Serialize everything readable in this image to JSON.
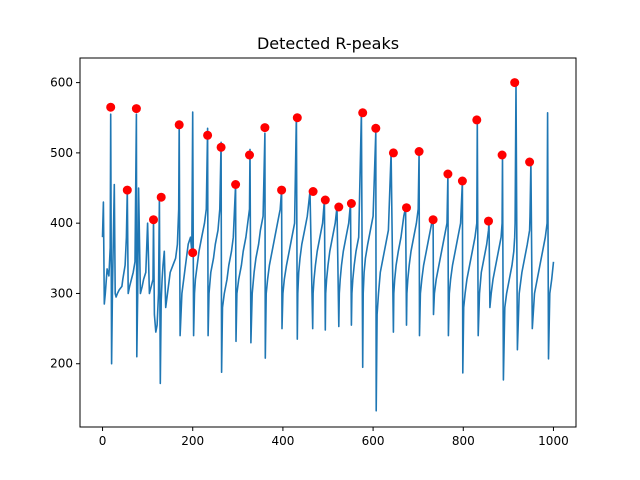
{
  "chart_data": {
    "type": "line",
    "title": "Detected R-peaks",
    "xlabel": "",
    "ylabel": "",
    "xlim": [
      -50,
      1050
    ],
    "ylim": [
      110,
      635
    ],
    "xticks": [
      0,
      200,
      400,
      600,
      800,
      1000
    ],
    "yticks": [
      200,
      300,
      400,
      500,
      600
    ],
    "grid": false,
    "series": [
      {
        "kind": "line",
        "color": "#1f77b4",
        "x": [
          0,
          2,
          4,
          6,
          10,
          14,
          17,
          18,
          20,
          22,
          26,
          28,
          30,
          33,
          37,
          43,
          45,
          50,
          53,
          55,
          57,
          60,
          64,
          68,
          72,
          75,
          76,
          78,
          80,
          84,
          86,
          88,
          91,
          96,
          100,
          104,
          108,
          112,
          113,
          115,
          118,
          121,
          124,
          126,
          128,
          130,
          132,
          134,
          137,
          140,
          146,
          150,
          156,
          162,
          166,
          169,
          170,
          172,
          176,
          182,
          186,
          190,
          195,
          198,
          200,
          202,
          204,
          206,
          210,
          214,
          220,
          226,
          230,
          233,
          234,
          236,
          240,
          246,
          250,
          256,
          260,
          263,
          264,
          266,
          270,
          276,
          280,
          286,
          290,
          295,
          296,
          298,
          302,
          308,
          312,
          318,
          322,
          326,
          327,
          329,
          332,
          336,
          340,
          346,
          350,
          356,
          360,
          361,
          363,
          366,
          370,
          376,
          382,
          388,
          394,
          397,
          398,
          400,
          403,
          408,
          414,
          420,
          426,
          430,
          432,
          433,
          435,
          438,
          442,
          448,
          454,
          460,
          466,
          467,
          469,
          472,
          476,
          482,
          488,
          492,
          494,
          495,
          497,
          500,
          504,
          510,
          516,
          520,
          524,
          525,
          527,
          530,
          534,
          540,
          546,
          550,
          552,
          553,
          555,
          558,
          562,
          568,
          574,
          577,
          578,
          580,
          583,
          588,
          594,
          600,
          606,
          607,
          609,
          612,
          616,
          622,
          628,
          634,
          640,
          645,
          646,
          648,
          651,
          656,
          662,
          668,
          672,
          674,
          675,
          677,
          680,
          684,
          690,
          696,
          700,
          702,
          703,
          705,
          708,
          712,
          718,
          724,
          730,
          733,
          734,
          736,
          740,
          746,
          752,
          758,
          764,
          766,
          767,
          769,
          772,
          776,
          782,
          788,
          794,
          798,
          799,
          801,
          804,
          808,
          814,
          820,
          826,
          830,
          831,
          833,
          836,
          840,
          846,
          852,
          856,
          857,
          859,
          862,
          866,
          872,
          878,
          884,
          886,
          887,
          889,
          892,
          896,
          902,
          908,
          912,
          914,
          915,
          917,
          920,
          924,
          930,
          936,
          942,
          947,
          948,
          950,
          953,
          958,
          964,
          970,
          976,
          982,
          986,
          987,
          989,
          992,
          996,
          1000
        ],
        "y": [
          380,
          430,
          285,
          300,
          335,
          325,
          365,
          555,
          200,
          310,
          455,
          300,
          295,
          300,
          305,
          310,
          320,
          340,
          380,
          447,
          300,
          310,
          320,
          330,
          345,
          555,
          210,
          300,
          450,
          300,
          305,
          310,
          320,
          330,
          400,
          300,
          310,
          320,
          405,
          270,
          245,
          255,
          300,
          437,
          172,
          290,
          320,
          340,
          360,
          280,
          310,
          330,
          340,
          350,
          370,
          420,
          545,
          240,
          300,
          330,
          350,
          370,
          380,
          360,
          558,
          240,
          300,
          320,
          340,
          360,
          380,
          400,
          420,
          535,
          240,
          300,
          330,
          350,
          370,
          390,
          420,
          515,
          188,
          280,
          300,
          320,
          340,
          360,
          380,
          455,
          232,
          300,
          320,
          340,
          360,
          380,
          400,
          420,
          505,
          230,
          300,
          330,
          350,
          370,
          390,
          410,
          528,
          208,
          300,
          320,
          340,
          360,
          380,
          400,
          420,
          447,
          250,
          300,
          320,
          340,
          360,
          380,
          400,
          555,
          235,
          300,
          330,
          350,
          370,
          390,
          410,
          445,
          250,
          300,
          320,
          340,
          360,
          380,
          400,
          433,
          248,
          300,
          320,
          340,
          360,
          380,
          400,
          423,
          253,
          300,
          320,
          340,
          360,
          380,
          400,
          428,
          255,
          300,
          320,
          340,
          360,
          380,
          557,
          195,
          300,
          330,
          350,
          370,
          390,
          410,
          530,
          133,
          270,
          300,
          330,
          350,
          370,
          390,
          500,
          245,
          300,
          320,
          340,
          360,
          380,
          410,
          422,
          255,
          300,
          320,
          340,
          360,
          380,
          400,
          420,
          502,
          240,
          300,
          320,
          340,
          360,
          380,
          400,
          405,
          270,
          300,
          320,
          340,
          360,
          380,
          400,
          470,
          240,
          300,
          320,
          340,
          360,
          380,
          400,
          460,
          187,
          280,
          300,
          320,
          340,
          360,
          380,
          400,
          547,
          240,
          300,
          330,
          350,
          370,
          390,
          403,
          280,
          300,
          320,
          340,
          360,
          380,
          400,
          497,
          177,
          280,
          300,
          320,
          340,
          360,
          380,
          400,
          600,
          220,
          300,
          330,
          350,
          370,
          390,
          410,
          487,
          250,
          300,
          320,
          340,
          360,
          380,
          400,
          557,
          207,
          300,
          320,
          345
        ]
      },
      {
        "kind": "scatter",
        "color": "#ff0000",
        "x": [
          18,
          55,
          75,
          113,
          130,
          170,
          200,
          233,
          263,
          295,
          326,
          360,
          397,
          432,
          467,
          494,
          524,
          552,
          577,
          606,
          645,
          674,
          702,
          733,
          766,
          798,
          830,
          856,
          886,
          914,
          947
        ],
        "y": [
          565,
          447,
          563,
          405,
          437,
          540,
          358,
          525,
          508,
          455,
          497,
          536,
          447,
          550,
          445,
          433,
          423,
          428,
          557,
          535,
          500,
          422,
          502,
          405,
          470,
          460,
          547,
          403,
          497,
          600,
          487
        ]
      }
    ]
  }
}
